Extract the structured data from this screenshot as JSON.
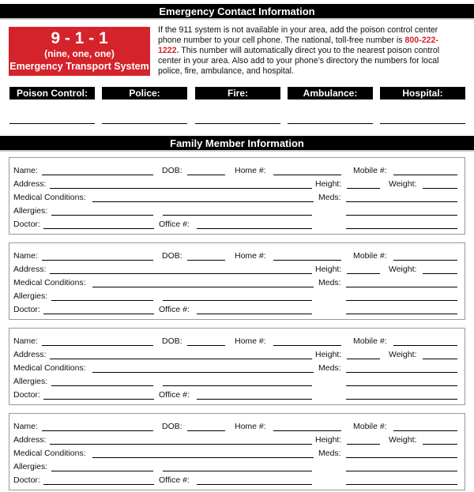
{
  "header": {
    "title": "Emergency Contact Information"
  },
  "emergency_box": {
    "number": "9 - 1 - 1",
    "spelled": "(nine, one, one)",
    "system": "Emergency Transport System"
  },
  "intro": {
    "text_before": "If the 911 system is not available in your area, add the poison control center phone number to your cell phone. The national, toll-free number is ",
    "phone": "800-222-1222.",
    "text_after": " This number will automatically direct you to the nearest poison control center in your area. Also add to your phone’s directory the numbers for local police, fire, ambulance, and hospital."
  },
  "contacts": [
    {
      "label": "Poison Control:"
    },
    {
      "label": "Police:"
    },
    {
      "label": "Fire:"
    },
    {
      "label": "Ambulance:"
    },
    {
      "label": "Hospital:"
    }
  ],
  "family": {
    "title": "Family Member Information",
    "labels": {
      "name": "Name:",
      "dob": "DOB:",
      "home": "Home #:",
      "mobile": "Mobile #:",
      "address": "Address:",
      "height": "Height:",
      "weight": "Weight:",
      "medical": "Medical Conditions:",
      "meds": "Meds:",
      "allergies": "Allergies:",
      "doctor": "Doctor:",
      "office": "Office #:"
    },
    "card_count": 4
  },
  "colors": {
    "accent_red": "#d4232b",
    "bar": "#000000"
  }
}
